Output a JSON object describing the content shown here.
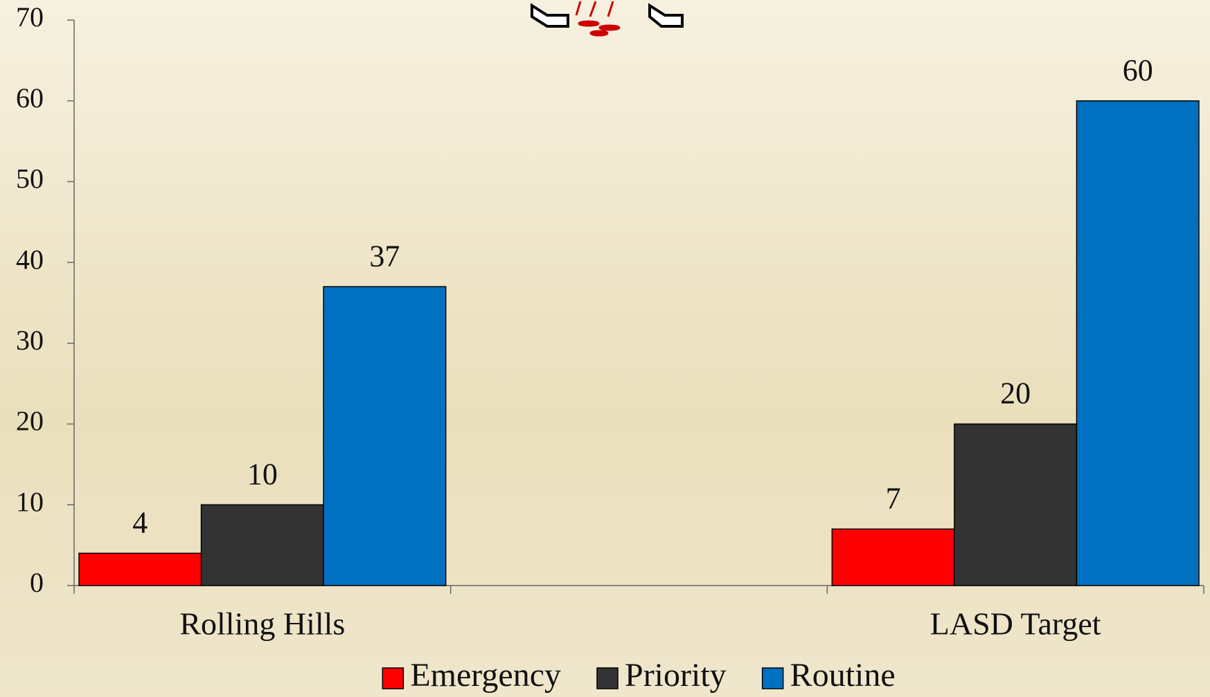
{
  "chart_data": {
    "type": "bar",
    "categories": [
      "Rolling Hills",
      null,
      "LASD Target"
    ],
    "series": [
      {
        "name": "Emergency",
        "color": "#ff0000",
        "values": [
          4,
          null,
          7
        ]
      },
      {
        "name": "Priority",
        "color": "#333333",
        "values": [
          10,
          null,
          20
        ]
      },
      {
        "name": "Routine",
        "color": "#0070c0",
        "values": [
          37,
          null,
          60
        ]
      }
    ],
    "ylim": [
      0,
      70
    ],
    "yticks": [
      0,
      10,
      20,
      30,
      40,
      50,
      60,
      70
    ],
    "grid": false,
    "data_labels": true,
    "legend": "bottom"
  }
}
